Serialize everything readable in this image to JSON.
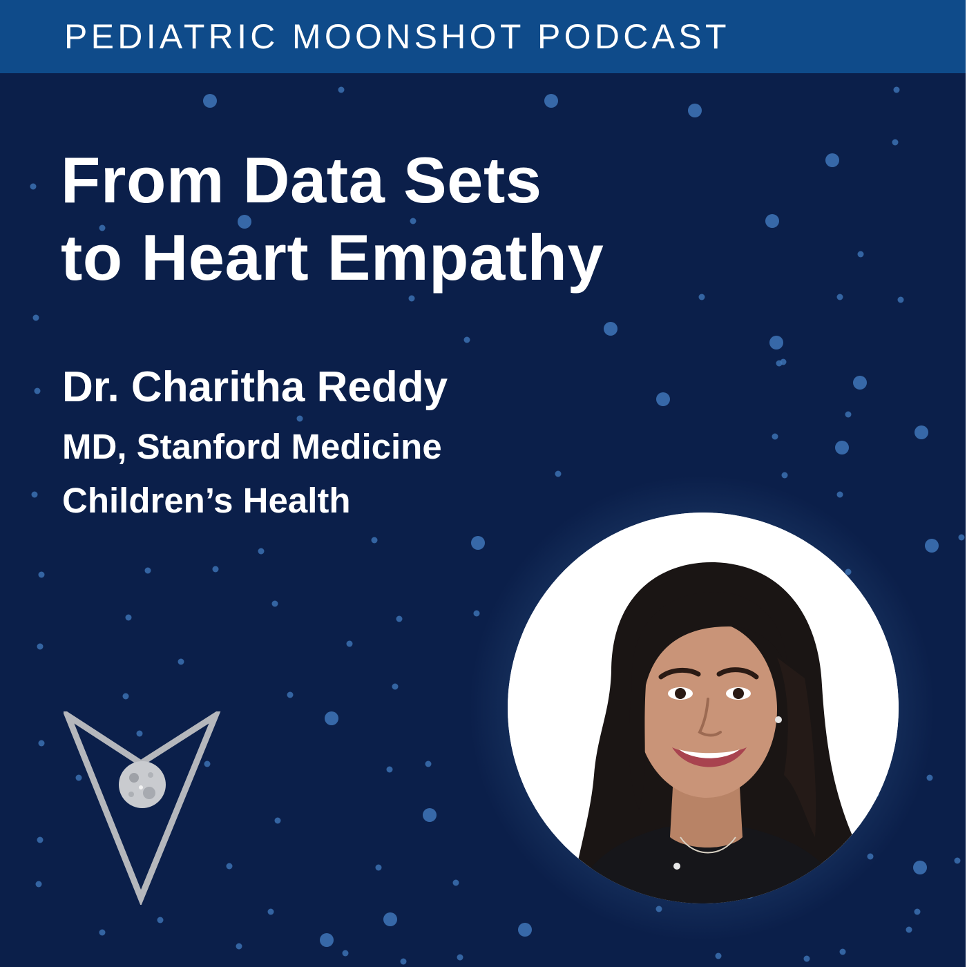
{
  "podcast": {
    "name": "PEDIATRIC MOONSHOT PODCAST"
  },
  "episode": {
    "title_lines": [
      "From Data Sets",
      "to Heart Empathy"
    ]
  },
  "guest": {
    "name": "Dr. Charitha Reddy",
    "credential_lines": [
      "MD, Stanford Medicine",
      "Children’s Health"
    ]
  },
  "colors": {
    "background": "#0b1f4a",
    "header_bar": "#0f4b8a",
    "star": "#3f75b8",
    "text": "#ffffff",
    "logo_outline": "#b5b7bc",
    "moon": "#c9cbcf"
  },
  "icons": {
    "logo": "moonshot-arrow-moon-icon",
    "portrait": "guest-portrait-photo"
  }
}
